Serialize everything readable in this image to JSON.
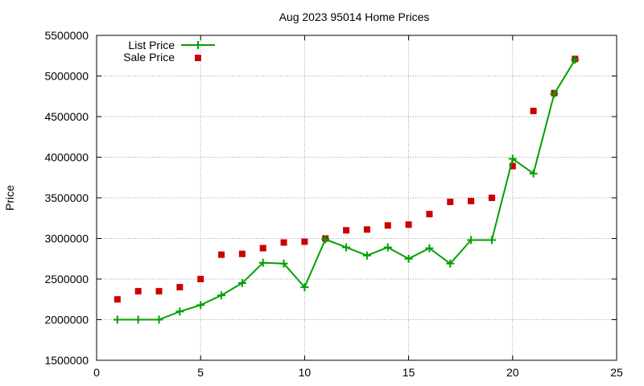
{
  "chart_data": {
    "type": "line",
    "title": "Aug 2023 95014 Home Prices",
    "xlabel": "",
    "ylabel": "Price",
    "xlim": [
      0,
      25
    ],
    "ylim": [
      1500000,
      5500000
    ],
    "xticks": [
      0,
      5,
      10,
      15,
      20,
      25
    ],
    "yticks": [
      1500000,
      2000000,
      2500000,
      3000000,
      3500000,
      4000000,
      4500000,
      5000000,
      5500000
    ],
    "grid": true,
    "legend_position": "top-left",
    "series": [
      {
        "name": "List Price",
        "style": "line-with-plus-markers",
        "color": "#00a000",
        "x": [
          1,
          2,
          3,
          4,
          5,
          6,
          7,
          8,
          9,
          10,
          11,
          12,
          13,
          14,
          15,
          16,
          17,
          18,
          19,
          20,
          21,
          22,
          23
        ],
        "y": [
          2000000,
          2000000,
          2000000,
          2100000,
          2180000,
          2300000,
          2450000,
          2700000,
          2690000,
          2400000,
          2990000,
          2890000,
          2790000,
          2890000,
          2750000,
          2880000,
          2690000,
          2980000,
          2980000,
          3980000,
          3800000,
          4780000,
          5200000
        ]
      },
      {
        "name": "Sale Price",
        "style": "square-markers",
        "color": "#cc0000",
        "x": [
          1,
          2,
          3,
          4,
          5,
          6,
          7,
          8,
          9,
          10,
          11,
          12,
          13,
          14,
          15,
          16,
          17,
          18,
          19,
          20,
          21,
          22,
          23
        ],
        "y": [
          2250000,
          2350000,
          2350000,
          2400000,
          2500000,
          2800000,
          2810000,
          2880000,
          2950000,
          2960000,
          3000000,
          3100000,
          3110000,
          3160000,
          3170000,
          3300000,
          3450000,
          3460000,
          3500000,
          3890000,
          4570000,
          4790000,
          5210000
        ]
      }
    ]
  }
}
